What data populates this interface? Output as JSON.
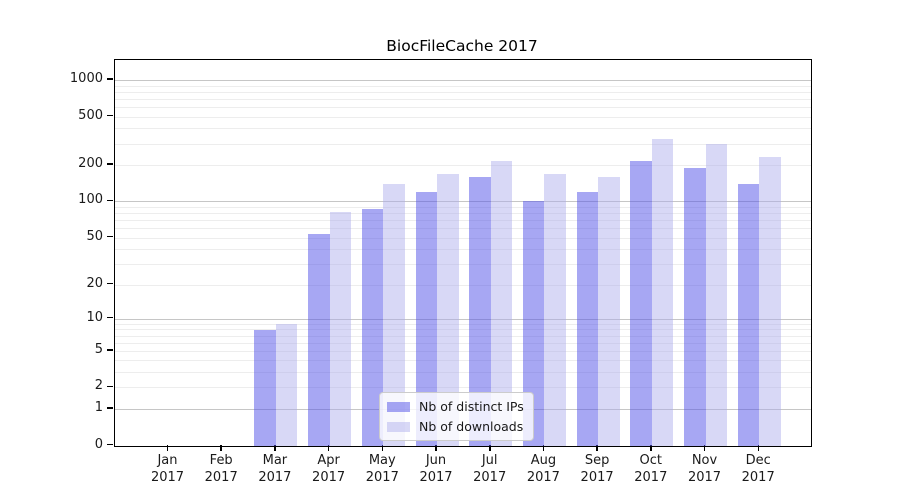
{
  "chart_data": {
    "type": "bar",
    "title": "BiocFileCache 2017",
    "year": "2017",
    "categories": [
      "Jan",
      "Feb",
      "Mar",
      "Apr",
      "May",
      "Jun",
      "Jul",
      "Aug",
      "Sep",
      "Oct",
      "Nov",
      "Dec"
    ],
    "series": [
      {
        "name": "Nb of distinct IPs",
        "color": "#5050e8",
        "opacity": 0.5,
        "values": [
          0,
          0,
          8,
          54,
          87,
          121,
          161,
          101,
          120,
          220,
          190,
          140
        ]
      },
      {
        "name": "Nb of downloads",
        "color": "#a8a8ec",
        "opacity": 0.45,
        "values": [
          0,
          0,
          9,
          82,
          140,
          170,
          216,
          171,
          160,
          330,
          300,
          236
        ]
      }
    ],
    "y_ticks": [
      0,
      1,
      2,
      5,
      10,
      20,
      50,
      100,
      200,
      500,
      1000
    ],
    "y_scale": "log1p",
    "ylim": [
      0,
      1400
    ],
    "xlabel": "",
    "ylabel": "",
    "grid": true,
    "legend_position": "lower-center"
  },
  "colors": {
    "grid_major": "#c6c6c6",
    "grid_minor": "#ededed",
    "axis": "#000000",
    "text": "#1a1a1a",
    "legend_bg": "#ffffff",
    "legend_border": "#cccccc",
    "bar_ips_rendered": "#a8a8f4",
    "bar_downloads_rendered": "#d8d8f7",
    "background": "#ffffff"
  }
}
